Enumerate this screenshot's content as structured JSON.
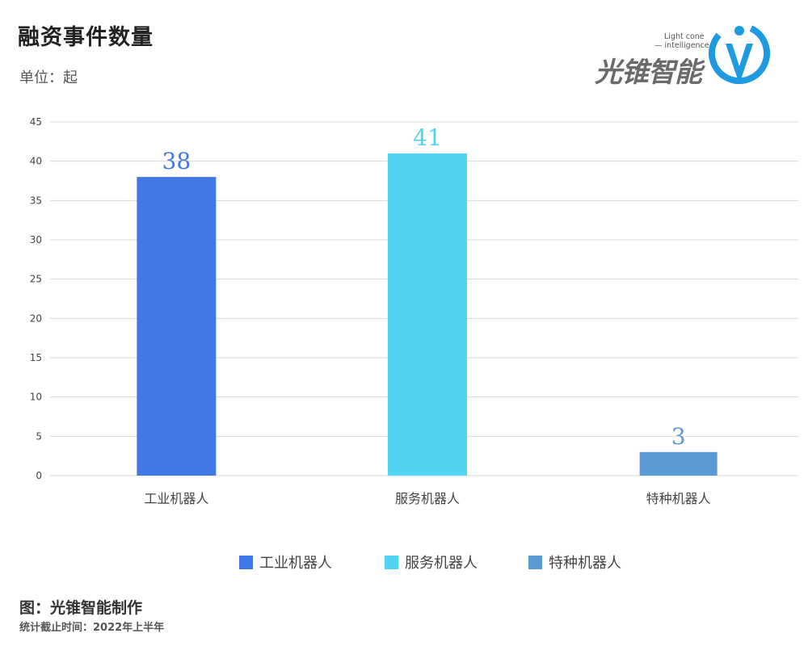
{
  "header": {
    "title": "融资事件数量",
    "unit": "单位：起"
  },
  "logo": {
    "brand": "光锥智能",
    "en_line1": "Light cone",
    "en_line2": "— intelligence"
  },
  "footer": {
    "credit": "图：光锥智能制作",
    "note": "统计截止时间：2022年上半年"
  },
  "colors": {
    "industrial": "#4178e5",
    "service": "#51d3f2",
    "special": "#5b9ad6",
    "grid": "#d9d9d9",
    "logo_blue": "#1e9be0"
  },
  "chart_data": {
    "type": "bar",
    "categories": [
      "工业机器人",
      "服务机器人",
      "特种机器人"
    ],
    "values": [
      38,
      41,
      3
    ],
    "ylim": [
      0,
      45
    ],
    "yticks": [
      0,
      5,
      10,
      15,
      20,
      25,
      30,
      35,
      40,
      45
    ],
    "legend": [
      "工业机器人",
      "服务机器人",
      "特种机器人"
    ],
    "legend_position": "bottom",
    "grid": true
  }
}
